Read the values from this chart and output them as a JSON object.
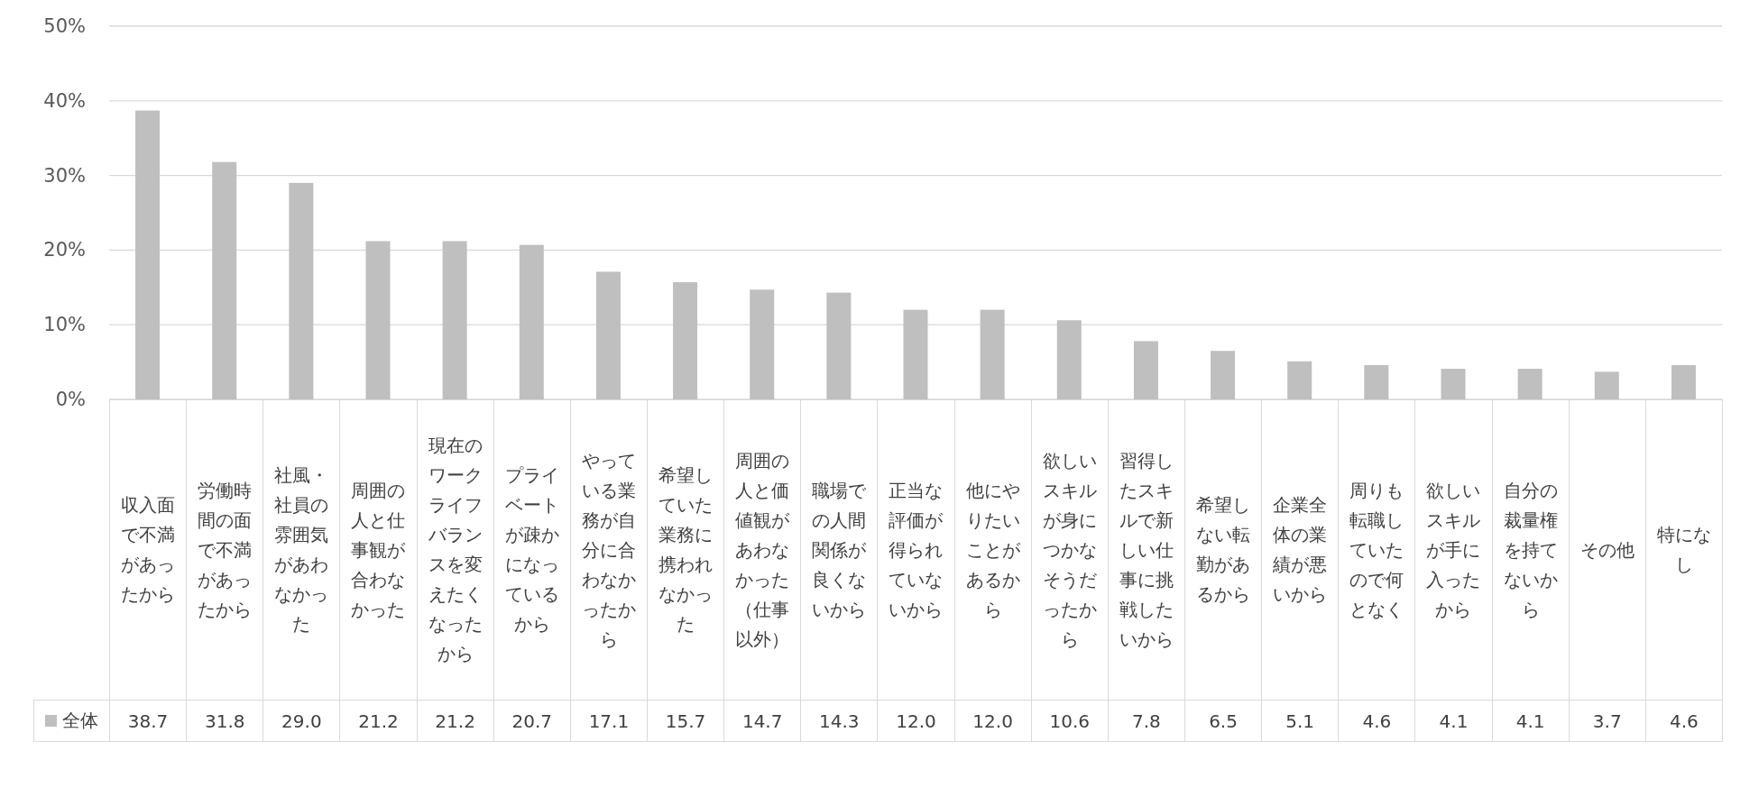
{
  "chart_data": {
    "type": "bar",
    "categories": [
      "収入面で不満があったから",
      "労働時間の面で不満があったから",
      "社風・社員の雰囲気があわなかった",
      "周囲の人と仕事観が合わなかった",
      "現在のワークライフバランスを変えたくなったから",
      "プライベートが疎かになっているから",
      "やっている業務が自分に合わなかったから",
      "希望していた業務に携われなかった",
      "周囲の人と価値観があわなかった（仕事以外）",
      "職場での人間関係が良くないから",
      "正当な評価が得られていないから",
      "他にやりたいことがあるから",
      "欲しいスキルが身につかなそうだったから",
      "習得したスキルで新しい仕事に挑戦したいから",
      "希望しない転勤があるから",
      "企業全体の業績が悪いから",
      "周りも転職していたので何となく",
      "欲しいスキルが手に入ったから",
      "自分の裁量権を持てないから",
      "その他",
      "特になし"
    ],
    "series": [
      {
        "name": "全体",
        "color": "#bfbfbf",
        "values": [
          38.7,
          31.8,
          29.0,
          21.2,
          21.2,
          20.7,
          17.1,
          15.7,
          14.7,
          14.3,
          12.0,
          12.0,
          10.6,
          7.8,
          6.5,
          5.1,
          4.6,
          4.1,
          4.1,
          3.7,
          4.6
        ],
        "value_labels": [
          "38.7",
          "31.8",
          "29.0",
          "21.2",
          "21.2",
          "20.7",
          "17.1",
          "15.7",
          "14.7",
          "14.3",
          "12.0",
          "12.0",
          "10.6",
          "7.8",
          "6.5",
          "5.1",
          "4.6",
          "4.1",
          "4.1",
          "3.7",
          "4.6"
        ]
      }
    ],
    "ylim": [
      0,
      50
    ],
    "yticks": [
      {
        "value": 0,
        "label": "0%"
      },
      {
        "value": 10,
        "label": "10%"
      },
      {
        "value": 20,
        "label": "20%"
      },
      {
        "value": 30,
        "label": "30%"
      },
      {
        "value": 40,
        "label": "40%"
      },
      {
        "value": 50,
        "label": "50%"
      }
    ],
    "grid": "y",
    "legend": "bottom left"
  }
}
